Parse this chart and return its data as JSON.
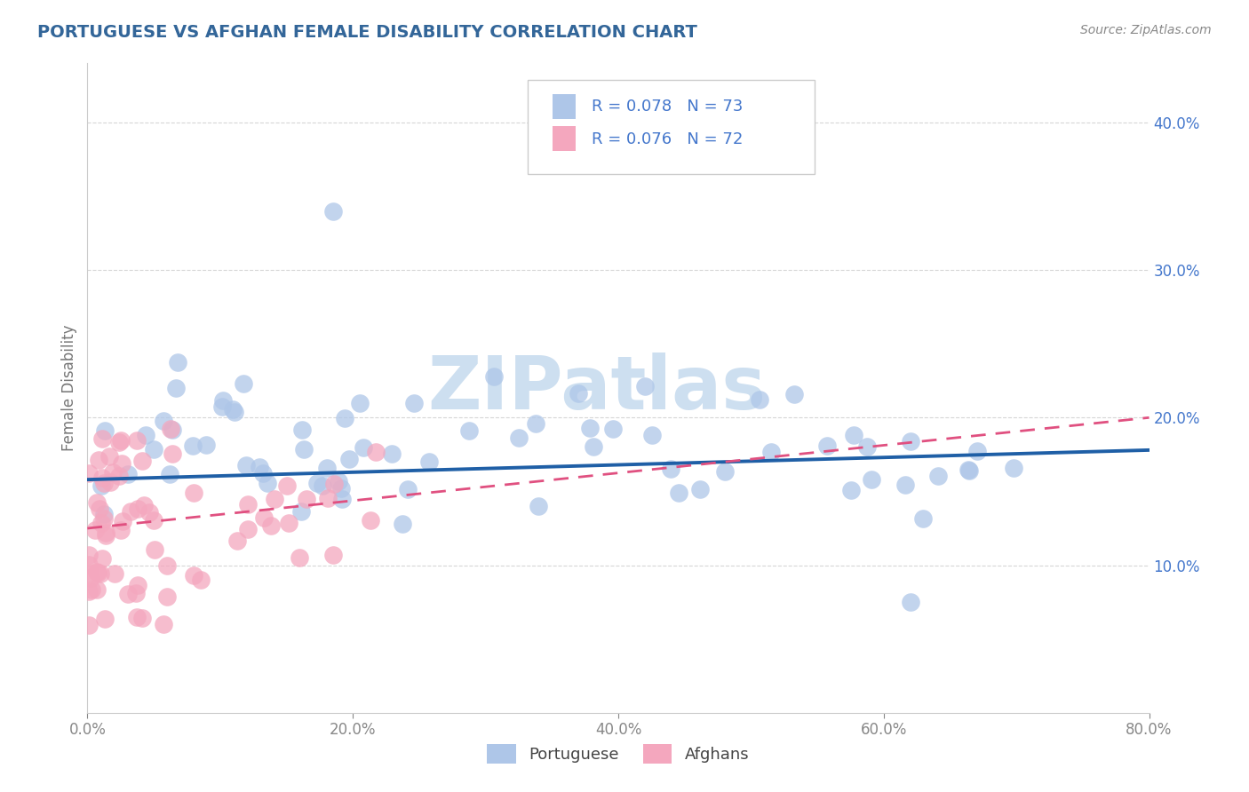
{
  "title": "PORTUGUESE VS AFGHAN FEMALE DISABILITY CORRELATION CHART",
  "source": "Source: ZipAtlas.com",
  "ylabel": "Female Disability",
  "xlim": [
    0.0,
    0.8
  ],
  "ylim": [
    0.0,
    0.44
  ],
  "yticks": [
    0.1,
    0.2,
    0.3,
    0.4
  ],
  "ytick_labels": [
    "10.0%",
    "20.0%",
    "30.0%",
    "40.0%"
  ],
  "xticks": [
    0.0,
    0.2,
    0.4,
    0.6,
    0.8
  ],
  "xtick_labels": [
    "0.0%",
    "20.0%",
    "40.0%",
    "60.0%",
    "80.0%"
  ],
  "portuguese_color": "#aec6e8",
  "afghan_color": "#f4a7be",
  "portuguese_R": 0.078,
  "portuguese_N": 73,
  "afghan_R": 0.076,
  "afghan_N": 72,
  "watermark": "ZIPatlas",
  "watermark_color": "#cddff0",
  "background_color": "#ffffff",
  "grid_color": "#cccccc",
  "trend_portuguese_color": "#1f5fa6",
  "trend_afghan_color": "#e05080",
  "title_color": "#336699",
  "source_color": "#888888",
  "tick_color": "#4477cc",
  "ylabel_color": "#777777"
}
